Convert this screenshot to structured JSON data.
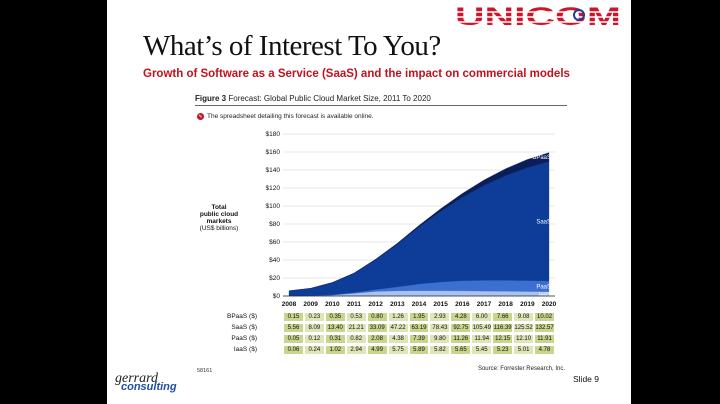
{
  "header": {
    "logo_text": "UNICOM",
    "title": "What’s of Interest To You?",
    "subtitle": "Growth of Software as a Service (SaaS) and the impact on commercial models"
  },
  "figure": {
    "label": "Figure 3",
    "caption": "Forecast: Global Public Cloud Market Size, 2011 To 2020",
    "note": "The spreadsheet detailing this forecast is available online.",
    "ylabel_line1": "Total",
    "ylabel_line2": "public cloud",
    "ylabel_line3": "markets",
    "ylabel_line4": "(US$ billions)",
    "code": "58161",
    "source": "Source: Forrester Research, Inc."
  },
  "footer": {
    "brand_line1": "gerrard",
    "brand_line2": "consulting",
    "slide_number": "Slide 9"
  },
  "colors": {
    "bpaas": "#0b1e5a",
    "saas": "#0d3d98",
    "paas": "#3d6fd0",
    "iaas": "#a9c2ee",
    "table_cell": "#c9d48c",
    "title_red": "#c0121f"
  },
  "chart_data": {
    "type": "area",
    "stacked": true,
    "x": [
      "2008",
      "2009",
      "2010",
      "2011",
      "2012",
      "2013",
      "2014",
      "2015",
      "2016",
      "2017",
      "2018",
      "2019",
      "2020"
    ],
    "ylim": [
      0,
      180
    ],
    "yticks": [
      "$0",
      "$20",
      "$40",
      "$60",
      "$80",
      "$100",
      "$120",
      "$140",
      "$160",
      "$180"
    ],
    "grid": true,
    "series": [
      {
        "name": "IaaS",
        "label": "IaaS ($)",
        "values": [
          "0.06",
          "0.24",
          "1.02",
          "2.94",
          "4.99",
          "5.75",
          "5.89",
          "5.82",
          "5.65",
          "5.45",
          "5.23",
          "5.01",
          "4.78"
        ]
      },
      {
        "name": "PaaS",
        "label": "PaaS ($)",
        "values": [
          "0.05",
          "0.12",
          "0.31",
          "0.82",
          "2.08",
          "4.38",
          "7.39",
          "9.80",
          "11.26",
          "11.94",
          "12.15",
          "12.10",
          "11.91"
        ]
      },
      {
        "name": "SaaS",
        "label": "SaaS ($)",
        "values": [
          "5.56",
          "8.09",
          "13.40",
          "21.21",
          "33.09",
          "47.22",
          "63.19",
          "78.43",
          "92.75",
          "105.49",
          "116.39",
          "125.52",
          "132.57"
        ]
      },
      {
        "name": "BPaaS",
        "label": "BPaaS ($)",
        "values": [
          "0.15",
          "0.23",
          "0.35",
          "0.53",
          "0.80",
          "1.26",
          "1.95",
          "2.93",
          "4.28",
          "6.00",
          "7.66",
          "9.08",
          "10.02"
        ]
      }
    ],
    "table_order": [
      "BPaaS",
      "SaaS",
      "PaaS",
      "IaaS"
    ]
  }
}
